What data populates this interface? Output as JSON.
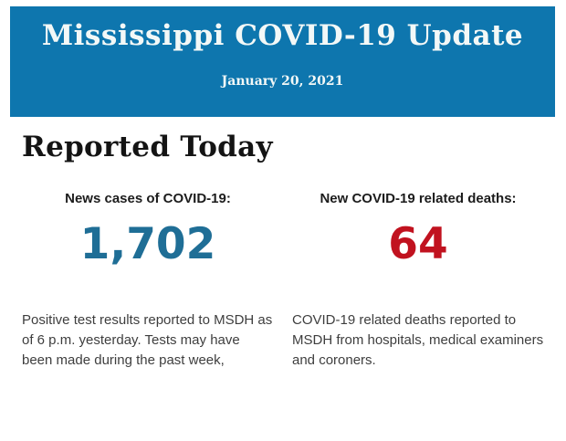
{
  "header": {
    "title": "Mississippi COVID-19 Update",
    "date": "January 20, 2021"
  },
  "section": {
    "heading": "Reported Today"
  },
  "stats": [
    {
      "label": "News cases of COVID-19:",
      "value": "1,702",
      "value_color": "#1f6e96",
      "description": "Positive test results reported to MSDH as of 6 p.m. yesterday. Tests may have been made during the past week,"
    },
    {
      "label": "New COVID-19 related deaths:",
      "value": "64",
      "value_color": "#c1121f",
      "description": "COVID-19 related deaths reported to MSDH from hospitals, medical examiners and coroners."
    }
  ],
  "colors": {
    "header_background": "#0e76ae",
    "header_text": "#f3f8f7",
    "cases_value": "#1f6e96",
    "deaths_value": "#c1121f",
    "body_text": "#3e3e3e",
    "heading_text": "#141414"
  }
}
